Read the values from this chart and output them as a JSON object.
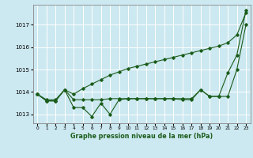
{
  "xlabel": "Graphe pression niveau de la mer (hPa)",
  "background_color": "#cce8f0",
  "plot_bg_color": "#cce8f0",
  "grid_color": "#ffffff",
  "line_color": "#1a5c1a",
  "xlim": [
    -0.5,
    23.5
  ],
  "ylim": [
    1012.6,
    1017.9
  ],
  "yticks": [
    1013,
    1014,
    1015,
    1016,
    1017
  ],
  "xticks": [
    0,
    1,
    2,
    3,
    4,
    5,
    6,
    7,
    8,
    9,
    10,
    11,
    12,
    13,
    14,
    15,
    16,
    17,
    18,
    19,
    20,
    21,
    22,
    23
  ],
  "line1_x": [
    0,
    1,
    2,
    3,
    4,
    5,
    6,
    7,
    8,
    9,
    10,
    11,
    12,
    13,
    14,
    15,
    16,
    17,
    18,
    19,
    20,
    21,
    22,
    23
  ],
  "line1_y": [
    1013.9,
    1013.6,
    1013.6,
    1014.1,
    1013.3,
    1013.3,
    1012.9,
    1013.5,
    1013.0,
    1013.65,
    1013.7,
    1013.7,
    1013.7,
    1013.7,
    1013.7,
    1013.7,
    1013.65,
    1013.65,
    1014.1,
    1013.8,
    1013.8,
    1013.8,
    1015.0,
    1017.0
  ],
  "line2_x": [
    0,
    1,
    2,
    3,
    4,
    5,
    6,
    7,
    8,
    9,
    10,
    11,
    12,
    13,
    14,
    15,
    16,
    17,
    18,
    19,
    20,
    21,
    22,
    23
  ],
  "line2_y": [
    1013.9,
    1013.6,
    1013.6,
    1014.1,
    1013.9,
    1014.15,
    1014.35,
    1014.55,
    1014.75,
    1014.9,
    1015.05,
    1015.15,
    1015.25,
    1015.35,
    1015.45,
    1015.55,
    1015.65,
    1015.75,
    1015.85,
    1015.95,
    1016.05,
    1016.2,
    1016.55,
    1017.55
  ],
  "line3_x": [
    0,
    1,
    2,
    3,
    4,
    5,
    6,
    7,
    8,
    9,
    10,
    11,
    12,
    13,
    14,
    15,
    16,
    17,
    18,
    19,
    20,
    21,
    22,
    23
  ],
  "line3_y": [
    1013.9,
    1013.65,
    1013.65,
    1014.1,
    1013.65,
    1013.65,
    1013.65,
    1013.65,
    1013.7,
    1013.7,
    1013.7,
    1013.7,
    1013.7,
    1013.7,
    1013.7,
    1013.7,
    1013.7,
    1013.7,
    1014.1,
    1013.8,
    1013.8,
    1014.85,
    1015.65,
    1017.65
  ],
  "marker": "D",
  "markersize": 1.8,
  "linewidth": 0.8
}
